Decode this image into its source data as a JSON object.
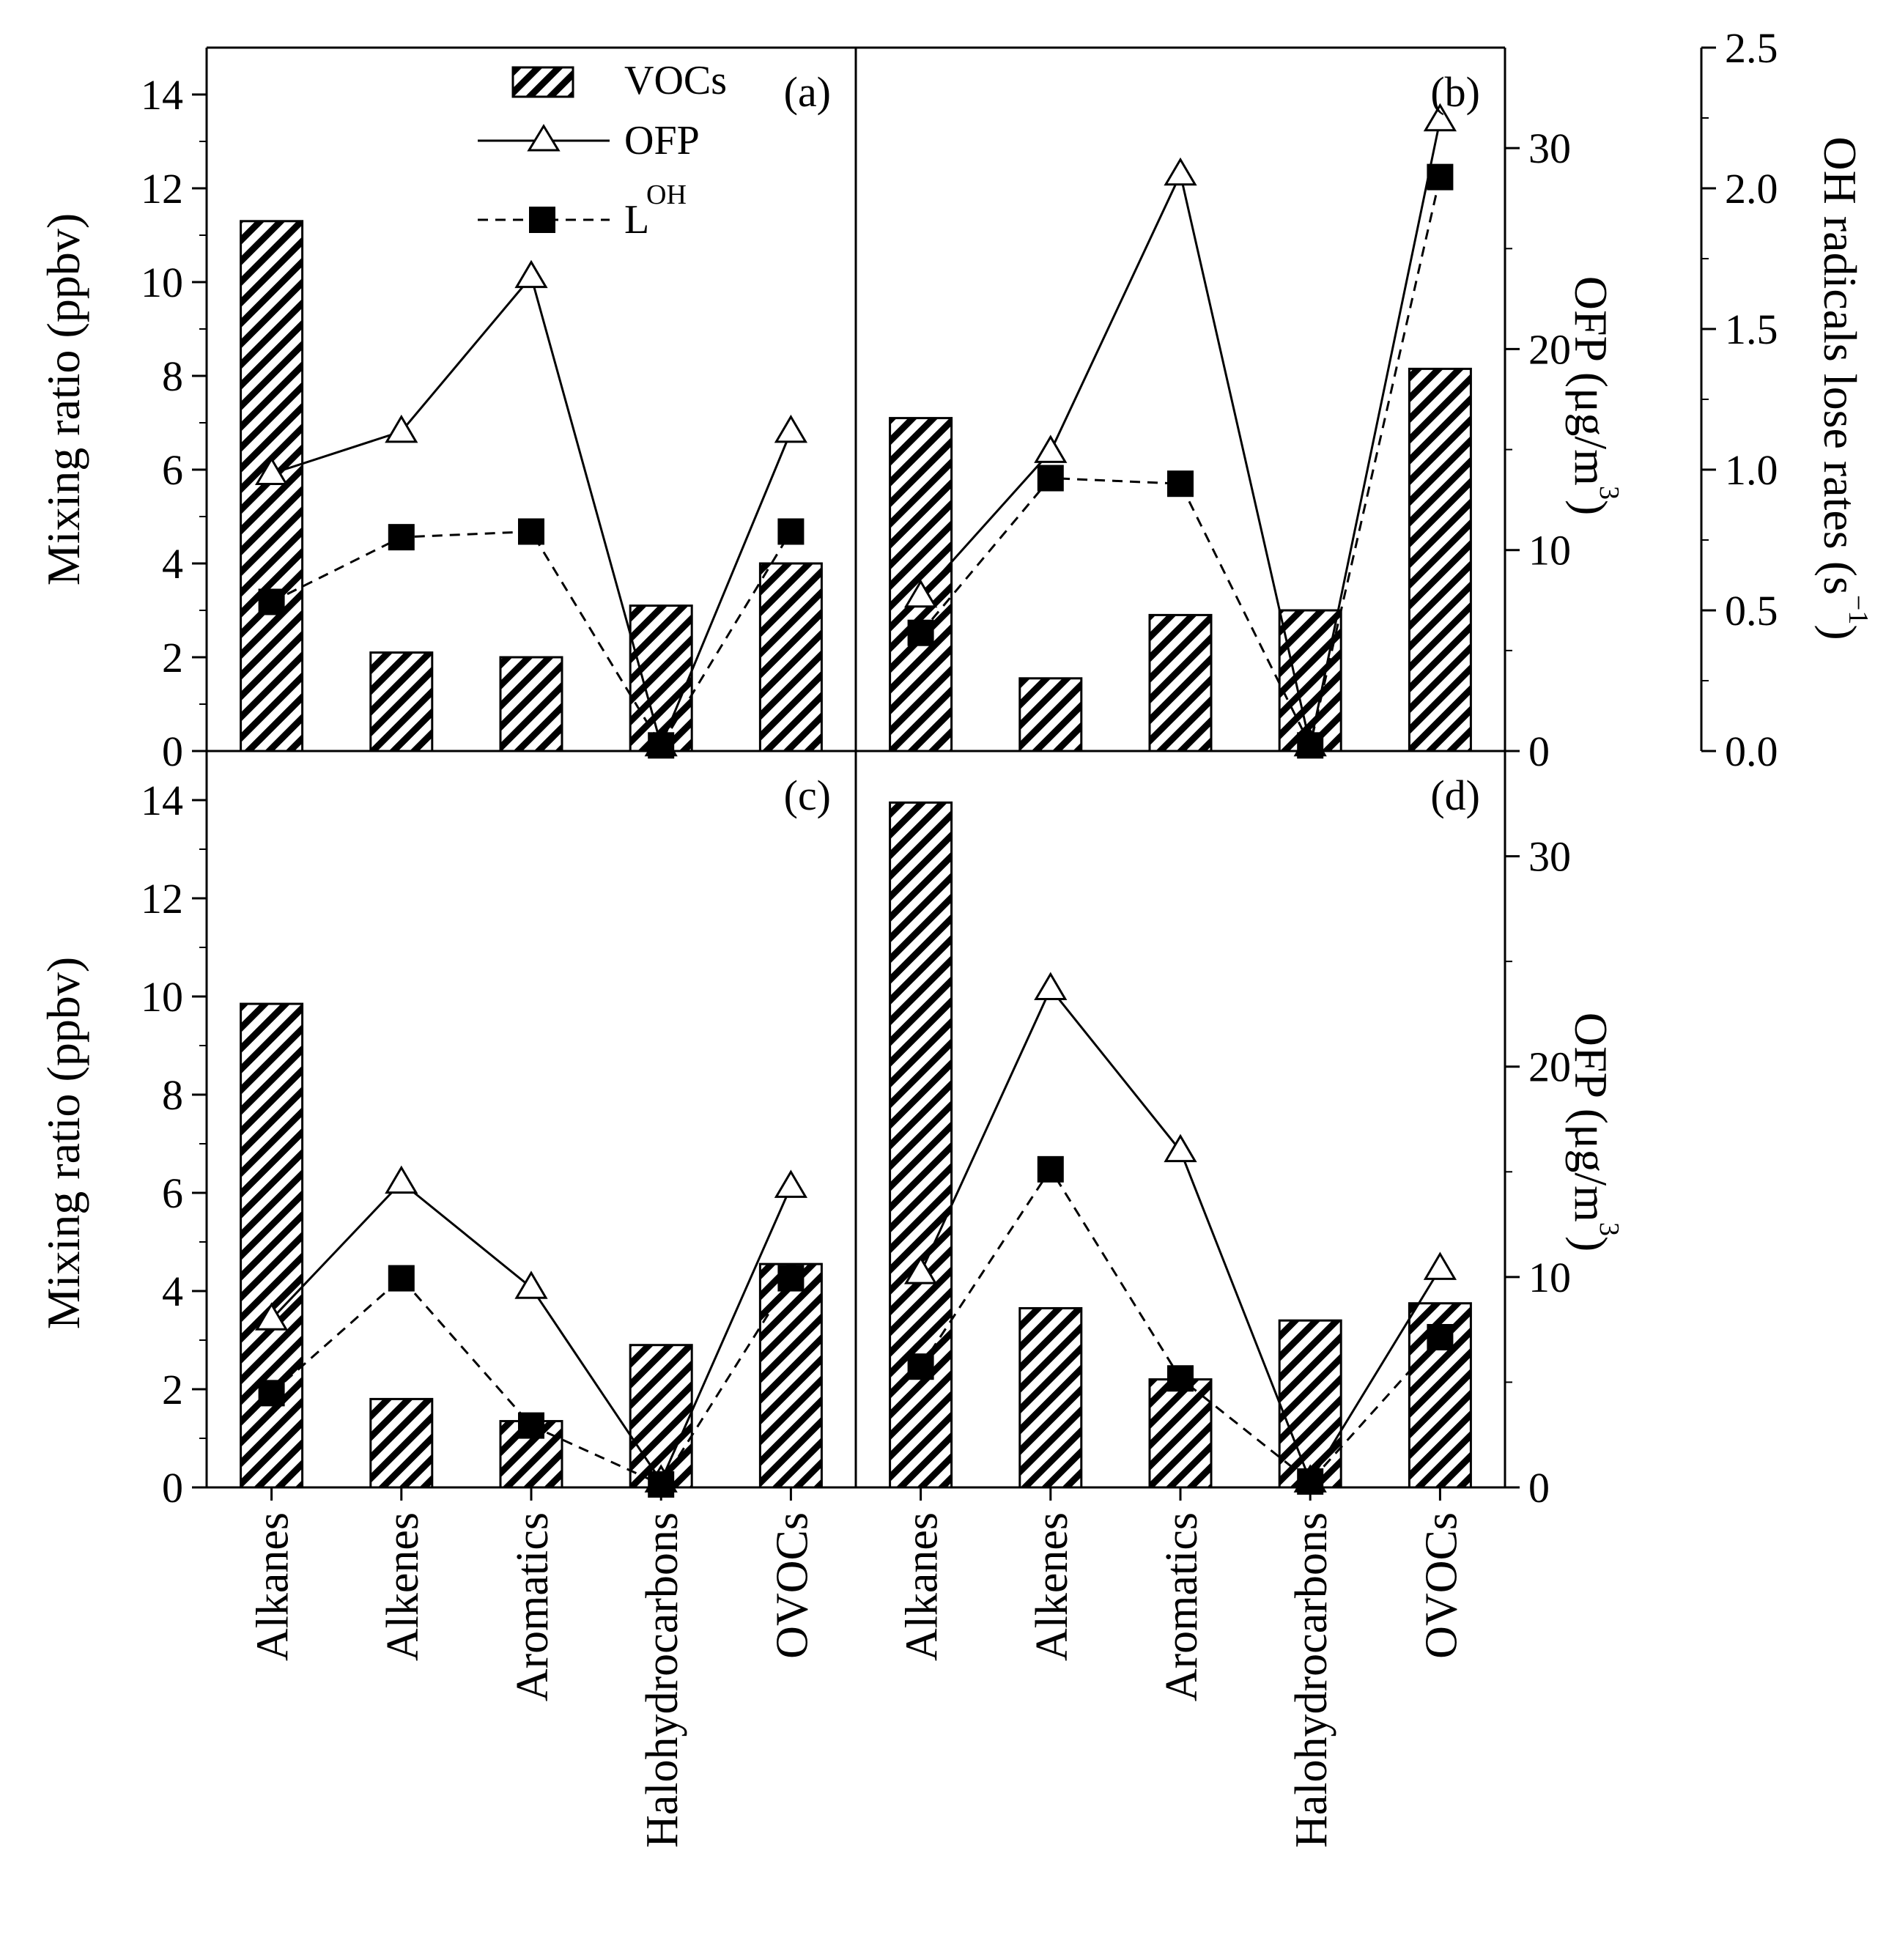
{
  "chart_data": {
    "type": "bar",
    "categories": [
      "Alkanes",
      "Alkenes",
      "Aromatics",
      "Halohydrocarbons",
      "OVOCs"
    ],
    "legend": {
      "bar": "VOCs",
      "line": "OFP",
      "marker_prefix": "L",
      "marker_sup": "OH"
    },
    "axes": {
      "left_title": "Mixing ratio (ppbv)",
      "left_ylim": [
        0,
        15
      ],
      "left_ticks": [
        0,
        2,
        4,
        6,
        8,
        10,
        12,
        14
      ],
      "ofp_title_main": "OFP (μg/m",
      "ofp_title_sup": "3",
      "ofp_title_close": ")",
      "ofp_ylim": [
        0,
        35
      ],
      "ofp_ticks": [
        0,
        10,
        20,
        30
      ],
      "oh_title_main": "OH radicals lose rates (s",
      "oh_title_sup": "−1",
      "oh_title_close": ")",
      "oh_ylim": [
        0,
        2.5
      ],
      "oh_ticks": [
        "0.0",
        "0.5",
        "1.0",
        "1.5",
        "2.0",
        "2.5"
      ]
    },
    "panels": [
      {
        "tag": "(a)",
        "series": [
          {
            "name": "VOCs",
            "axis": "left",
            "values": [
              11.3,
              2.1,
              2.0,
              3.1,
              4.0
            ]
          },
          {
            "name": "OFP",
            "axis": "ofp",
            "values": [
              13.8,
              15.9,
              23.6,
              0.3,
              15.9
            ]
          },
          {
            "name": "LOH",
            "axis": "oh",
            "values": [
              0.53,
              0.76,
              0.78,
              0.02,
              0.78
            ]
          }
        ]
      },
      {
        "tag": "(b)",
        "series": [
          {
            "name": "VOCs",
            "axis": "left",
            "values": [
              7.1,
              1.55,
              2.9,
              3.0,
              8.15
            ]
          },
          {
            "name": "OFP",
            "axis": "ofp",
            "values": [
              7.7,
              14.9,
              28.7,
              0.3,
              31.4
            ]
          },
          {
            "name": "LOH",
            "axis": "oh",
            "values": [
              0.42,
              0.97,
              0.95,
              0.02,
              2.04
            ]
          }
        ]
      },
      {
        "tag": "(c)",
        "series": [
          {
            "name": "VOCs",
            "axis": "left",
            "values": [
              9.85,
              1.8,
              1.35,
              2.9,
              4.55
            ]
          },
          {
            "name": "OFP",
            "axis": "ofp",
            "values": [
              8.0,
              14.5,
              9.5,
              0.3,
              14.3
            ]
          },
          {
            "name": "LOH",
            "axis": "oh",
            "values": [
              0.32,
              0.71,
              0.21,
              0.01,
              0.71
            ]
          }
        ]
      },
      {
        "tag": "(d)",
        "series": [
          {
            "name": "VOCs",
            "axis": "left",
            "values": [
              13.95,
              3.65,
              2.2,
              3.4,
              3.75
            ]
          },
          {
            "name": "OFP",
            "axis": "ofp",
            "values": [
              10.2,
              23.7,
              16.0,
              0.3,
              10.4
            ]
          },
          {
            "name": "LOH",
            "axis": "oh",
            "values": [
              0.41,
              1.08,
              0.37,
              0.02,
              0.51
            ]
          }
        ]
      }
    ]
  }
}
